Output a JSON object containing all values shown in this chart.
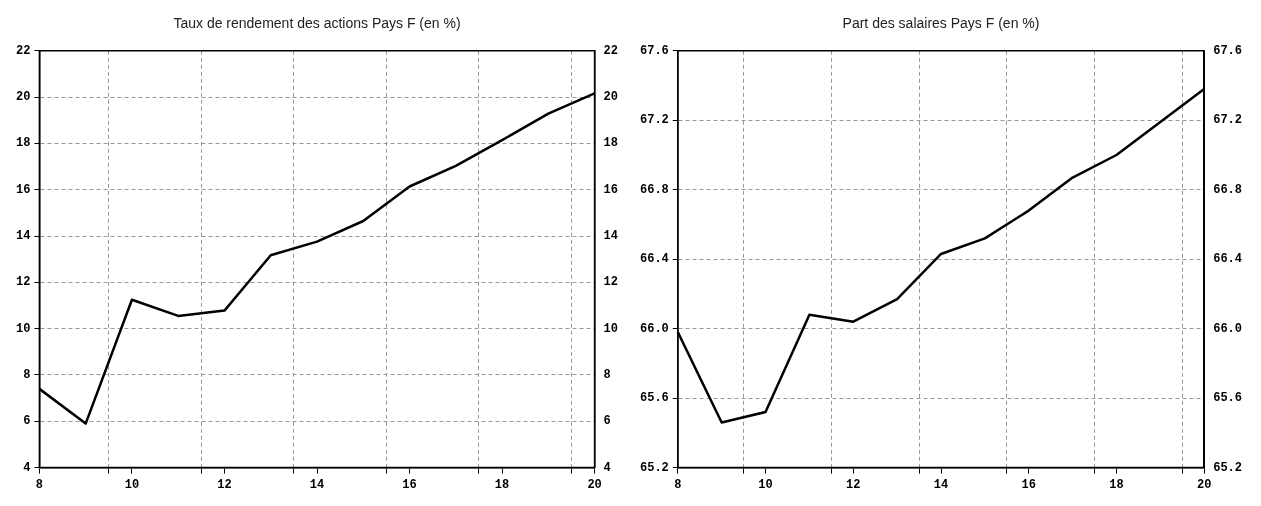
{
  "chart_data": [
    {
      "type": "line",
      "title": "Taux de rendement des actions Pays F (en %)",
      "x": [
        8,
        9,
        10,
        11,
        12,
        13,
        14,
        15,
        16,
        17,
        18,
        19,
        20
      ],
      "series": [
        {
          "color": "#000000",
          "values": [
            7.4,
            5.9,
            11.25,
            10.55,
            10.78,
            13.17,
            13.76,
            14.65,
            16.14,
            17.03,
            18.14,
            19.29,
            20.16
          ]
        }
      ],
      "xlim": [
        8,
        20
      ],
      "xticks": [
        8,
        {
          "value": 9.5,
          "label": null
        },
        10,
        {
          "value": 11.5,
          "label": null
        },
        12,
        {
          "value": 13.5,
          "label": null
        },
        14,
        {
          "value": 15.5,
          "label": null
        },
        16,
        {
          "value": 17.5,
          "label": null
        },
        18,
        {
          "value": 19.5,
          "label": null
        },
        20
      ],
      "ylim": [
        4,
        22
      ],
      "yticks": [
        4,
        6,
        8,
        10,
        12,
        14,
        16,
        18,
        20,
        22
      ],
      "y2lim": [
        4,
        22
      ],
      "y2ticks": [
        4,
        6,
        8,
        10,
        12,
        14,
        16,
        18,
        20,
        22
      ],
      "grid": true,
      "legend": false,
      "marker": "none",
      "line_style": "solid"
    },
    {
      "type": "line",
      "title": "Part des salaires Pays F (en %)",
      "x": [
        8,
        9,
        10,
        11,
        12,
        13,
        14,
        15,
        16,
        17,
        18,
        19,
        20
      ],
      "series": [
        {
          "color": "#000000",
          "values": [
            65.98,
            65.46,
            65.52,
            66.08,
            66.04,
            66.17,
            66.43,
            66.52,
            66.68,
            66.87,
            67.0,
            67.19,
            67.38
          ]
        }
      ],
      "xlim": [
        8,
        20
      ],
      "xticks": [
        8,
        {
          "value": 9.5,
          "label": null
        },
        10,
        {
          "value": 11.5,
          "label": null
        },
        12,
        {
          "value": 13.5,
          "label": null
        },
        14,
        {
          "value": 15.5,
          "label": null
        },
        16,
        {
          "value": 17.5,
          "label": null
        },
        18,
        {
          "value": 19.5,
          "label": null
        },
        20
      ],
      "ylim": [
        65.2,
        67.6
      ],
      "yticks": [
        {
          "value": 65.2,
          "label": "65.2"
        },
        {
          "value": 65.6,
          "label": "65.6"
        },
        {
          "value": 66.0,
          "label": "66.0"
        },
        {
          "value": 66.4,
          "label": "66.4"
        },
        {
          "value": 66.8,
          "label": "66.8"
        },
        {
          "value": 67.2,
          "label": "67.2"
        },
        {
          "value": 67.6,
          "label": "67.6"
        }
      ],
      "y2lim": [
        65.2,
        67.6
      ],
      "y2ticks": [
        {
          "value": 65.2,
          "label": "65.2"
        },
        {
          "value": 65.6,
          "label": "65.6"
        },
        {
          "value": 66.0,
          "label": "66.0"
        },
        {
          "value": 66.4,
          "label": "66.4"
        },
        {
          "value": 66.8,
          "label": "66.8"
        },
        {
          "value": 67.2,
          "label": "67.2"
        },
        {
          "value": 67.6,
          "label": "67.6"
        }
      ],
      "grid": true,
      "legend": false,
      "marker": "none",
      "line_style": "solid"
    }
  ]
}
